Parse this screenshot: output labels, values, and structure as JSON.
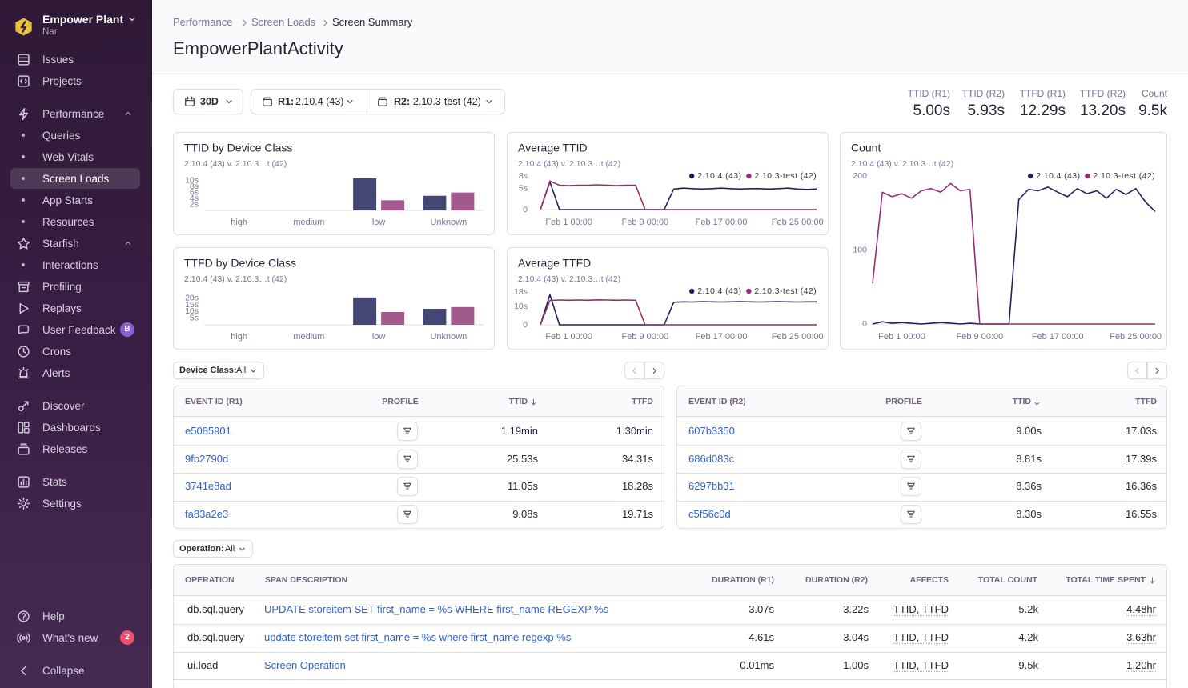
{
  "sidebar": {
    "org": "Empower Plant",
    "user": "Nar",
    "groups": [
      [
        {
          "label": "Issues"
        },
        {
          "label": "Projects"
        }
      ],
      [
        {
          "label": "Performance",
          "children": [
            {
              "label": "Queries"
            },
            {
              "label": "Web Vitals"
            },
            {
              "label": "Screen Loads",
              "active": true
            },
            {
              "label": "App Starts"
            },
            {
              "label": "Resources"
            }
          ]
        },
        {
          "label": "Starfish",
          "children": [
            {
              "label": "Interactions"
            }
          ]
        },
        {
          "label": "Profiling"
        },
        {
          "label": "Replays"
        },
        {
          "label": "User Feedback",
          "badge": "B"
        },
        {
          "label": "Crons"
        },
        {
          "label": "Alerts"
        }
      ],
      [
        {
          "label": "Discover"
        },
        {
          "label": "Dashboards"
        },
        {
          "label": "Releases"
        }
      ],
      [
        {
          "label": "Stats"
        },
        {
          "label": "Settings"
        }
      ]
    ],
    "footer": [
      [
        {
          "label": "Help"
        },
        {
          "label": "What's new",
          "badge": "2"
        }
      ],
      [
        {
          "label": "Collapse"
        }
      ]
    ]
  },
  "breadcrumbs": [
    "Performance",
    "Screen Loads",
    "Screen Summary"
  ],
  "title": "EmpowerPlantActivity",
  "filters": {
    "period": "30D",
    "release_1": {
      "label": "R1:",
      "value": "2.10.4 (43)"
    },
    "release_2": {
      "label": "R2:",
      "value": "2.10.3-test (42)"
    }
  },
  "summary": [
    {
      "label": "TTID (R1)",
      "value": "5.00s"
    },
    {
      "label": "TTID (R2)",
      "value": "5.93s"
    },
    {
      "label": "TTFD (R1)",
      "value": "12.29s"
    },
    {
      "label": "TTFD (R2)",
      "value": "13.20s"
    },
    {
      "label": "Count",
      "value": "9.5k"
    }
  ],
  "chart_data": [
    {
      "type": "bar",
      "title": "TTID by Device Class",
      "subtitle": "2.10.4 (43) v. 2.10.3…t (42)",
      "categories": [
        "high",
        "medium",
        "low",
        "Unknown"
      ],
      "series": [
        {
          "color": "#444674",
          "values": [
            0,
            0,
            10.8,
            4.9
          ]
        },
        {
          "color": "#a15a8b",
          "values": [
            0,
            0,
            3.4,
            6.0
          ]
        }
      ],
      "ylim": [
        0,
        11
      ],
      "yticks": [
        {
          "value": 2,
          "label": "2s"
        },
        {
          "value": 4,
          "label": "4s"
        },
        {
          "value": 6,
          "label": "6s"
        },
        {
          "value": 8,
          "label": "8s"
        },
        {
          "value": 10,
          "label": "10s"
        }
      ]
    },
    {
      "type": "bar",
      "title": "TTFD by Device Class",
      "subtitle": "2.10.4 (43) v. 2.10.3…t (42)",
      "categories": [
        "high",
        "medium",
        "low",
        "Unknown"
      ],
      "series": [
        {
          "color": "#444674",
          "values": [
            0,
            0,
            20.5,
            12.0
          ]
        },
        {
          "color": "#a15a8b",
          "values": [
            0,
            0,
            9.6,
            13.3
          ]
        }
      ],
      "ylim": [
        0,
        21
      ],
      "yticks": [
        {
          "value": 5,
          "label": "5s"
        },
        {
          "value": 10,
          "label": "10s"
        },
        {
          "value": 15,
          "label": "15s"
        },
        {
          "value": 20,
          "label": "20s"
        }
      ]
    },
    {
      "type": "line",
      "title": "Average TTID",
      "subtitle": "2.10.4 (43) v. 2.10.3…t (42)",
      "x": [
        "Jan 29 00:00",
        "Jan 30 00:00",
        "Jan 31 00:00",
        "Feb 1 00:00",
        "Feb 2 00:00",
        "Feb 3 00:00",
        "Feb 4 00:00",
        "Feb 5 00:00",
        "Feb 6 00:00",
        "Feb 7 00:00",
        "Feb 8 00:00",
        "Feb 9 00:00",
        "Feb 10 00:00",
        "Feb 11 00:00",
        "Feb 12 00:00",
        "Feb 13 00:00",
        "Feb 14 00:00",
        "Feb 15 00:00",
        "Feb 16 00:00",
        "Feb 17 00:00",
        "Feb 18 00:00",
        "Feb 19 00:00",
        "Feb 20 00:00",
        "Feb 21 00:00",
        "Feb 22 00:00",
        "Feb 23 00:00",
        "Feb 24 00:00",
        "Feb 25 00:00",
        "Feb 26 00:00",
        "Feb 27 00:00"
      ],
      "series": [
        {
          "name": "2.10.4 (43)",
          "color": "#25215c",
          "values": [
            0,
            6.6,
            0,
            0,
            0,
            0,
            0,
            0,
            0,
            0,
            0,
            0,
            0,
            0,
            4.9,
            5.1,
            5.0,
            4.9,
            5.0,
            5.1,
            5.0,
            4.9,
            5.0,
            5.0,
            4.9,
            5.0,
            5.1,
            4.9,
            4.8,
            4.9
          ]
        },
        {
          "name": "2.10.3-test (42)",
          "color": "#962d70",
          "values": [
            0,
            6.8,
            5.8,
            5.7,
            5.8,
            5.8,
            5.9,
            5.8,
            5.7,
            5.8,
            5.8,
            0,
            0,
            0,
            0,
            0,
            0,
            0,
            0,
            0,
            0,
            0,
            0,
            0,
            0,
            0,
            0,
            0,
            0,
            0
          ]
        }
      ],
      "ylim": [
        0,
        8
      ],
      "yticks": [
        0,
        {
          "value": 5,
          "label": "5s"
        },
        {
          "value": 8,
          "label": "8s"
        }
      ],
      "xticks": [
        "Feb 1 00:00",
        "Feb 9 00:00",
        "Feb 17 00:00",
        "Feb 25 00:00"
      ]
    },
    {
      "type": "line",
      "title": "Average TTFD",
      "subtitle": "2.10.4 (43) v. 2.10.3…t (42)",
      "x": [
        "Jan 29 00:00",
        "Jan 30 00:00",
        "Jan 31 00:00",
        "Feb 1 00:00",
        "Feb 2 00:00",
        "Feb 3 00:00",
        "Feb 4 00:00",
        "Feb 5 00:00",
        "Feb 6 00:00",
        "Feb 7 00:00",
        "Feb 8 00:00",
        "Feb 9 00:00",
        "Feb 10 00:00",
        "Feb 11 00:00",
        "Feb 12 00:00",
        "Feb 13 00:00",
        "Feb 14 00:00",
        "Feb 15 00:00",
        "Feb 16 00:00",
        "Feb 17 00:00",
        "Feb 18 00:00",
        "Feb 19 00:00",
        "Feb 20 00:00",
        "Feb 21 00:00",
        "Feb 22 00:00",
        "Feb 23 00:00",
        "Feb 24 00:00",
        "Feb 25 00:00",
        "Feb 26 00:00",
        "Feb 27 00:00"
      ],
      "series": [
        {
          "name": "2.10.4 (43)",
          "color": "#25215c",
          "values": [
            0,
            16.5,
            0,
            0,
            0,
            0,
            0,
            0,
            0,
            0,
            0,
            0,
            0,
            0,
            12.4,
            12.6,
            12.5,
            12.7,
            12.6,
            12.5,
            12.6,
            12.7,
            12.6,
            12.5,
            12.6,
            12.7,
            12.6,
            12.5,
            12.6,
            12.6
          ]
        },
        {
          "name": "2.10.3-test (42)",
          "color": "#962d70",
          "values": [
            0,
            13.4,
            13.6,
            13.5,
            13.6,
            13.5,
            13.7,
            13.6,
            13.5,
            13.6,
            13.5,
            0,
            0,
            0,
            0,
            0,
            0,
            0,
            0,
            0,
            0,
            0,
            0,
            0,
            0,
            0,
            0,
            0,
            0,
            0
          ]
        }
      ],
      "ylim": [
        0,
        18
      ],
      "yticks": [
        0,
        {
          "value": 10,
          "label": "10s"
        },
        {
          "value": 18,
          "label": "18s"
        }
      ],
      "xticks": [
        "Feb 1 00:00",
        "Feb 9 00:00",
        "Feb 17 00:00",
        "Feb 25 00:00"
      ]
    },
    {
      "type": "line",
      "title": "Count",
      "subtitle": "2.10.4 (43) v. 2.10.3…t (42)",
      "x": [
        "Jan 29 00:00",
        "Jan 30 00:00",
        "Jan 31 00:00",
        "Feb 1 00:00",
        "Feb 2 00:00",
        "Feb 3 00:00",
        "Feb 4 00:00",
        "Feb 5 00:00",
        "Feb 6 00:00",
        "Feb 7 00:00",
        "Feb 8 00:00",
        "Feb 9 00:00",
        "Feb 10 00:00",
        "Feb 11 00:00",
        "Feb 12 00:00",
        "Feb 13 00:00",
        "Feb 14 00:00",
        "Feb 15 00:00",
        "Feb 16 00:00",
        "Feb 17 00:00",
        "Feb 18 00:00",
        "Feb 19 00:00",
        "Feb 20 00:00",
        "Feb 21 00:00",
        "Feb 22 00:00",
        "Feb 23 00:00",
        "Feb 24 00:00",
        "Feb 25 00:00",
        "Feb 26 00:00",
        "Feb 27 00:00"
      ],
      "series": [
        {
          "name": "2.10.4 (43)",
          "color": "#25215c",
          "values": [
            0,
            3,
            1,
            2,
            1,
            0,
            1,
            2,
            1,
            0,
            1,
            0,
            0,
            0,
            0,
            168,
            182,
            180,
            185,
            178,
            172,
            183,
            176,
            180,
            170,
            182,
            175,
            183,
            165,
            152
          ]
        },
        {
          "name": "2.10.3-test (42)",
          "color": "#962d70",
          "values": [
            55,
            178,
            172,
            176,
            170,
            180,
            183,
            178,
            190,
            180,
            182,
            0,
            0,
            0,
            0,
            0,
            0,
            0,
            0,
            0,
            0,
            0,
            0,
            0,
            0,
            0,
            0,
            0,
            0,
            0
          ]
        }
      ],
      "ylim": [
        0,
        200
      ],
      "yticks": [
        0,
        100,
        200
      ],
      "xticks": [
        "Feb 1 00:00",
        "Feb 9 00:00",
        "Feb 17 00:00",
        "Feb 25 00:00"
      ]
    }
  ],
  "device_filter": {
    "label": "Device Class:",
    "value": "All"
  },
  "event_tables": [
    {
      "columns": [
        "EVENT ID (R1)",
        "PROFILE",
        "TTID",
        "TTFD"
      ],
      "rows": [
        [
          "e5085901",
          "1.19min",
          "1.30min"
        ],
        [
          "9fb2790d",
          "25.53s",
          "34.31s"
        ],
        [
          "3741e8ad",
          "11.05s",
          "18.28s"
        ],
        [
          "fa83a2e3",
          "9.08s",
          "19.71s"
        ]
      ]
    },
    {
      "columns": [
        "EVENT ID (R2)",
        "PROFILE",
        "TTID",
        "TTFD"
      ],
      "rows": [
        [
          "607b3350",
          "9.00s",
          "17.03s"
        ],
        [
          "686d083c",
          "8.81s",
          "17.39s"
        ],
        [
          "6297bb31",
          "8.36s",
          "16.36s"
        ],
        [
          "c5f56c0d",
          "8.30s",
          "16.55s"
        ]
      ]
    }
  ],
  "operation_filter": {
    "label": "Operation:",
    "value": "All"
  },
  "operations_table": {
    "columns": [
      "OPERATION",
      "SPAN DESCRIPTION",
      "DURATION (R1)",
      "DURATION (R2)",
      "AFFECTS",
      "TOTAL COUNT",
      "TOTAL TIME SPENT"
    ],
    "rows": [
      [
        "db.sql.query",
        "UPDATE storeitem SET first_name = %s WHERE first_name REGEXP %s",
        "3.07s",
        "3.22s",
        "TTID, TTFD",
        "5.2k",
        "4.48hr"
      ],
      [
        "db.sql.query",
        "update storeitem set first_name = %s where first_name regexp %s",
        "4.61s",
        "3.04s",
        "TTID, TTFD",
        "4.2k",
        "3.63hr"
      ],
      [
        "ui.load",
        "Screen Operation",
        "0.01ms",
        "1.00s",
        "TTID, TTFD",
        "9.5k",
        "1.20hr"
      ]
    ]
  }
}
